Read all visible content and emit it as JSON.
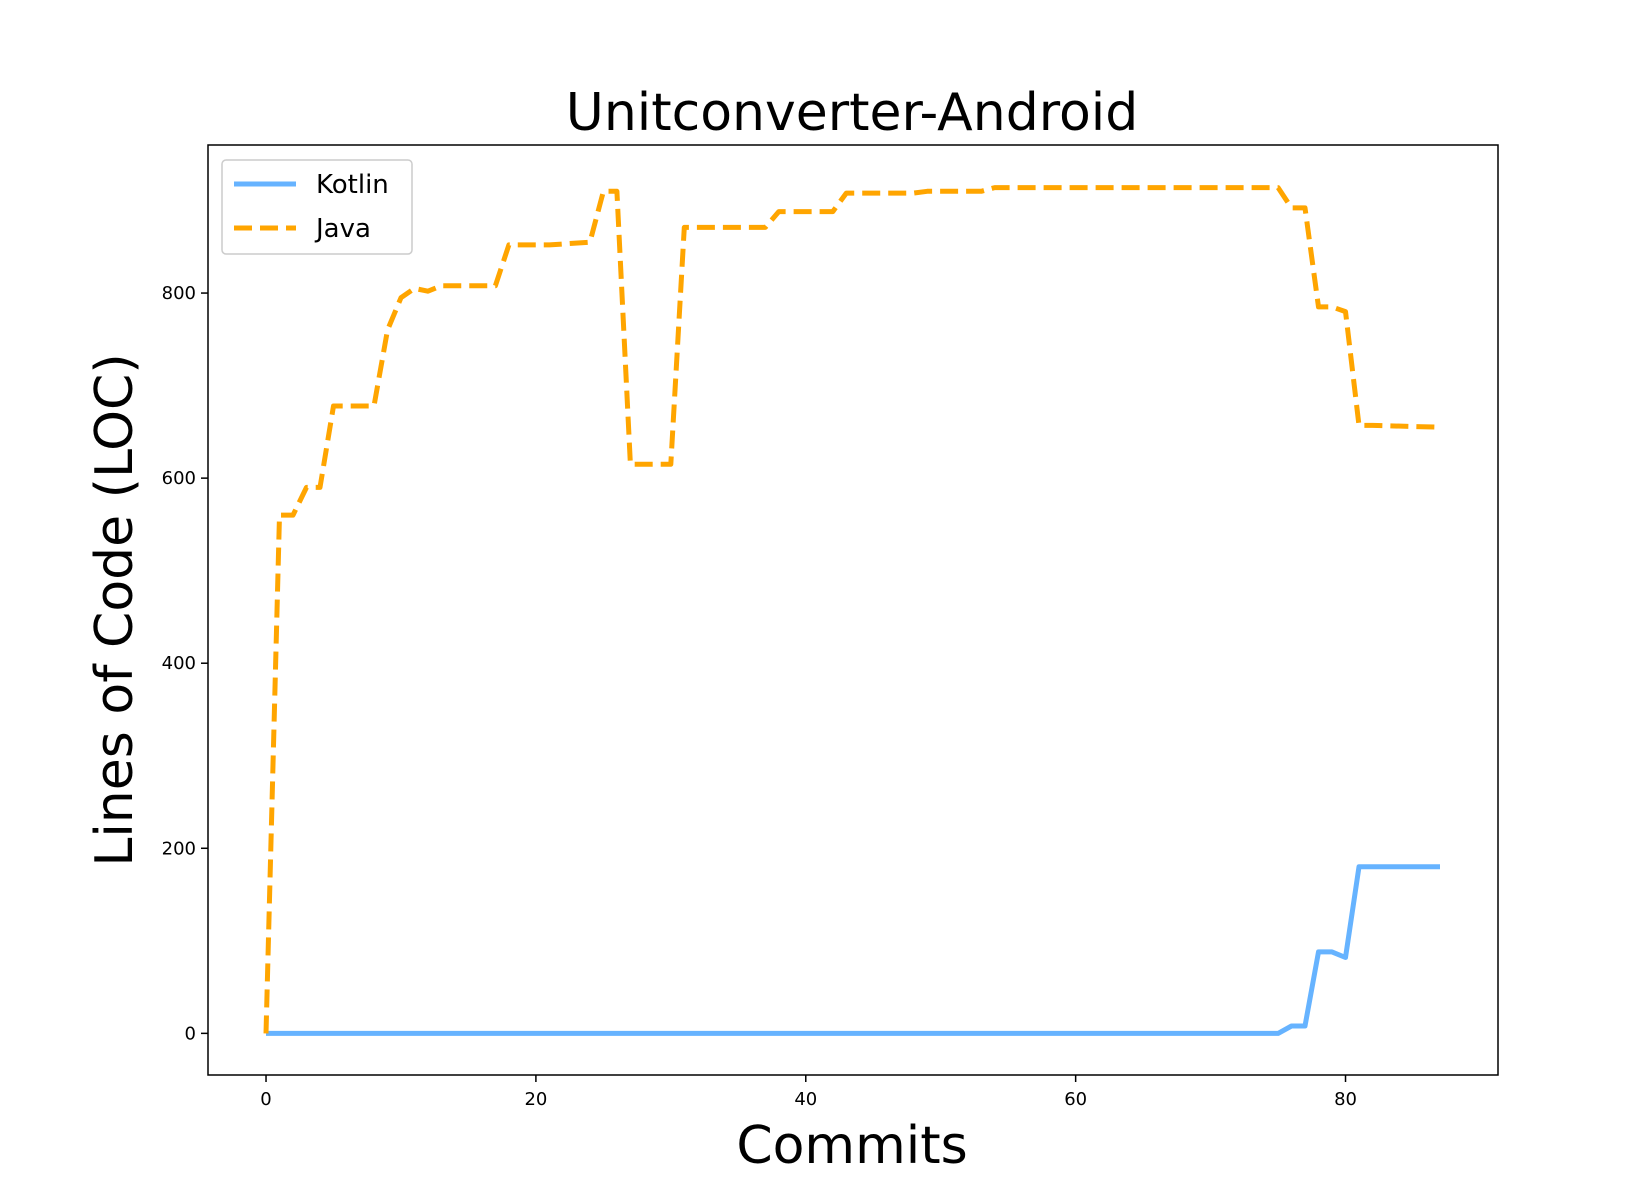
{
  "chart_data": {
    "type": "line",
    "title": "Unitconverter-Android",
    "xlabel": "Commits",
    "ylabel": "Lines of Code (LOC)",
    "xlim": [
      -4.3,
      91.3
    ],
    "ylim": [
      -45,
      960
    ],
    "xticks": [
      0,
      20,
      40,
      60,
      80
    ],
    "yticks": [
      0,
      200,
      400,
      600,
      800
    ],
    "grid": false,
    "legend": "top-left",
    "series": [
      {
        "name": "Kotlin",
        "color": "#66b3ff",
        "style": "solid",
        "x": [
          0,
          75,
          76,
          77,
          78,
          79,
          80,
          81,
          82,
          87
        ],
        "y": [
          0,
          0,
          8,
          8,
          88,
          88,
          82,
          180,
          180,
          180
        ]
      },
      {
        "name": "Java",
        "color": "#ffa500",
        "style": "dashed",
        "x": [
          0,
          1,
          2,
          3,
          4,
          5,
          6,
          8,
          9,
          10,
          11,
          12,
          13,
          17,
          18,
          20,
          21,
          24,
          25,
          26,
          27,
          28,
          29,
          30,
          31,
          37,
          38,
          42,
          43,
          48,
          49,
          53,
          54,
          75,
          76,
          77,
          78,
          79,
          80,
          81,
          82,
          87
        ],
        "y": [
          0,
          560,
          560,
          590,
          590,
          678,
          678,
          678,
          760,
          795,
          805,
          802,
          808,
          808,
          852,
          852,
          852,
          855,
          910,
          910,
          615,
          615,
          615,
          615,
          871,
          871,
          888,
          888,
          908,
          908,
          910,
          910,
          914,
          914,
          892,
          892,
          785,
          785,
          780,
          657,
          657,
          655
        ]
      }
    ]
  }
}
